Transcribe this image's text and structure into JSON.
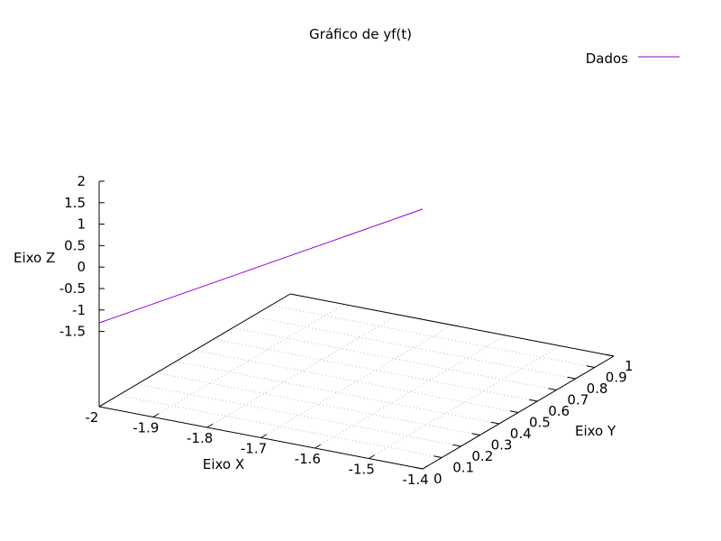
{
  "chart_data": {
    "type": "line",
    "projection": "3d",
    "title": "Gráfico de yf(t)",
    "xlabel": "Eixo X",
    "ylabel": "Eixo Y",
    "zlabel": "Eixo Z",
    "xlim": [
      -2,
      -1.4
    ],
    "ylim": [
      0,
      1
    ],
    "zlim": [
      -1.5,
      2
    ],
    "x_ticks": [
      "-2",
      "-1.9",
      "-1.8",
      "-1.7",
      "-1.6",
      "-1.5",
      "-1.4"
    ],
    "y_ticks": [
      "0",
      "0.1",
      "0.2",
      "0.3",
      "0.4",
      "0.5",
      "0.6",
      "0.7",
      "0.8",
      "0.9",
      "1"
    ],
    "z_ticks": [
      "2",
      "1.5",
      "1",
      "0.5",
      "0",
      "-0.5",
      "-1",
      "-1.5"
    ],
    "grid": true,
    "legend_position": "top-right",
    "series": [
      {
        "name": "Dados",
        "color": "#9400d3",
        "x": [
          -2,
          -1.4
        ],
        "y": [
          0,
          0
        ],
        "z": [
          -1.3,
          2.8
        ]
      }
    ]
  }
}
